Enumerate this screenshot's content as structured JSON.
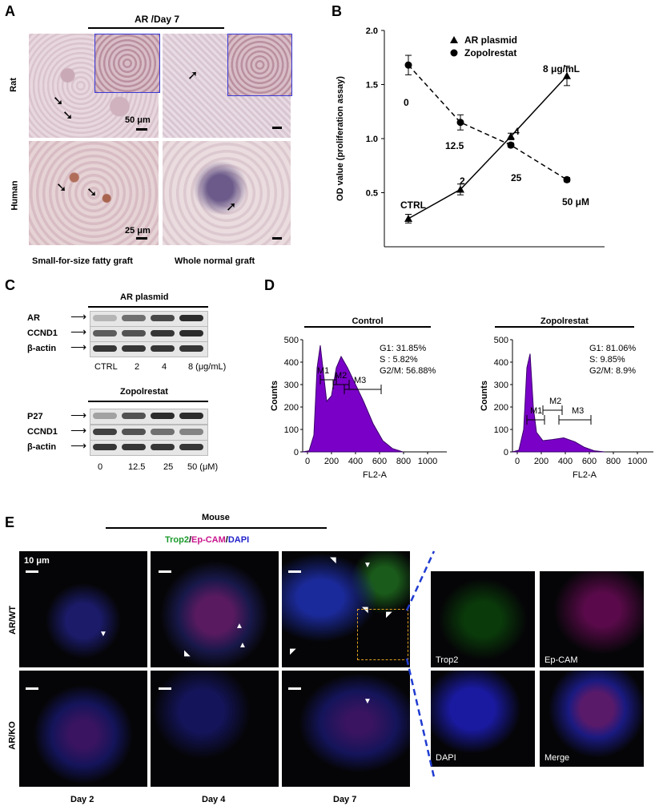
{
  "panels": {
    "a": "A",
    "b": "B",
    "c": "C",
    "d": "D",
    "e": "E"
  },
  "panel_a": {
    "header": "AR /Day 7",
    "row_labels": [
      "Rat",
      "Human"
    ],
    "col_labels": [
      "Small-for-size fatty graft",
      "Whole normal graft"
    ],
    "scale_labels": [
      "50 μm",
      "25 μm"
    ]
  },
  "chart_data": {
    "type": "line",
    "ylabel": "OD value (proliferation assay)",
    "ylim": [
      0.0,
      2.0
    ],
    "yticks": [
      "0.5",
      "1.0",
      "1.5",
      "2.0"
    ],
    "legend": [
      {
        "name": "AR plasmid",
        "marker": "triangle",
        "style": "solid"
      },
      {
        "name": "Zopolrestat",
        "marker": "circle",
        "style": "dashed"
      }
    ],
    "series": [
      {
        "name": "AR plasmid",
        "point_labels": [
          "CTRL",
          "2",
          "4",
          "8 μg/mL"
        ],
        "values": [
          0.26,
          0.53,
          1.02,
          1.58
        ],
        "errors": [
          0.04,
          0.05,
          0.03,
          0.09
        ]
      },
      {
        "name": "Zopolrestat",
        "point_labels": [
          "0",
          "12.5",
          "25",
          "50 μM"
        ],
        "values": [
          1.68,
          1.15,
          0.94,
          0.62
        ],
        "errors": [
          0.09,
          0.07,
          0.02,
          0.02
        ]
      }
    ]
  },
  "panel_c": {
    "top_header": "AR plasmid",
    "top_rows": [
      "AR",
      "CCND1",
      "β-actin"
    ],
    "top_conc": [
      "CTRL",
      "2",
      "4",
      "8 (μg/mL)"
    ],
    "bottom_header": "Zopolrestat",
    "bottom_rows": [
      "P27",
      "CCND1",
      "β-actin"
    ],
    "bottom_conc": [
      "0",
      "12.5",
      "25",
      "50 (μM)"
    ]
  },
  "panel_d": {
    "plots": [
      {
        "title": "Control",
        "stats": [
          "G1: 31.85%",
          "S : 5.82%",
          "G2/M: 56.88%"
        ],
        "gates": [
          "M1",
          "M2",
          "M3"
        ]
      },
      {
        "title": "Zopolrestat",
        "stats": [
          "G1: 81.06%",
          "S: 9.85%",
          "G2/M: 8.9%"
        ],
        "gates": [
          "M1",
          "M2",
          "M3"
        ]
      }
    ],
    "ylabel": "Counts",
    "xlabel": "FL2-A",
    "yticks": [
      "0",
      "100",
      "200",
      "300",
      "400",
      "500"
    ],
    "xticks": [
      "0",
      "200",
      "400",
      "600",
      "800",
      "1000"
    ]
  },
  "panel_e": {
    "header": "Mouse",
    "stain_trop2": "Trop2",
    "stain_sep1": "/",
    "stain_epcam": "Ep-CAM",
    "stain_sep2": "/",
    "stain_dapi": "DAPI",
    "scale": "10 μm",
    "rows": [
      "AR/WT",
      "AR/KO"
    ],
    "days": [
      "Day 2",
      "Day 4",
      "Day 7"
    ],
    "zoom_labels": [
      "Trop2",
      "Ep-CAM",
      "DAPI",
      "Merge"
    ]
  },
  "colors": {
    "trop2": "#1a9a2a",
    "epcam": "#c8148c",
    "dapi": "#2222cc",
    "zoom": "#1f3bd0",
    "histogram": "#7a00c8"
  }
}
